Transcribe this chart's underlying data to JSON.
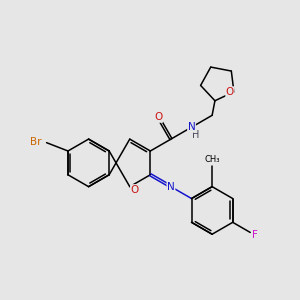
{
  "bg_color": "#e6e6e6",
  "colors": {
    "bond": "#000000",
    "N": "#1414cc",
    "O": "#cc1414",
    "Br": "#cc6600",
    "F": "#cc14cc"
  },
  "figsize": [
    3.0,
    3.0
  ],
  "dpi": 100
}
